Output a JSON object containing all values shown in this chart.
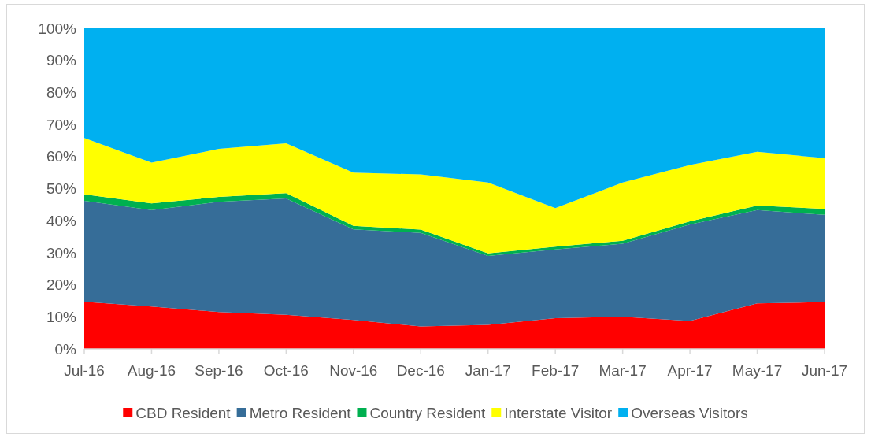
{
  "chart_data": {
    "type": "area",
    "stacked": true,
    "categories": [
      "Jul-16",
      "Aug-16",
      "Sep-16",
      "Oct-16",
      "Nov-16",
      "Dec-16",
      "Jan-17",
      "Feb-17",
      "Mar-17",
      "Apr-17",
      "May-17",
      "Jun-17"
    ],
    "series": [
      {
        "name": "CBD Resident",
        "color": "#ff0000",
        "values": [
          14.7,
          13.2,
          11.5,
          10.6,
          9.0,
          7.0,
          7.5,
          9.6,
          10.0,
          8.7,
          14.2,
          14.6
        ]
      },
      {
        "name": "Metro Resident",
        "color": "#366d98",
        "values": [
          31.5,
          30.1,
          34.4,
          36.3,
          28.3,
          29.2,
          21.5,
          21.4,
          22.8,
          30.1,
          29.1,
          27.2
        ]
      },
      {
        "name": "Country Resident",
        "color": "#00b050",
        "values": [
          2.0,
          2.1,
          1.5,
          1.7,
          1.1,
          1.0,
          0.8,
          0.9,
          0.9,
          1.0,
          1.4,
          1.9
        ]
      },
      {
        "name": "Interstate Visitor",
        "color": "#ffff00",
        "values": [
          17.6,
          12.7,
          15.0,
          15.5,
          16.6,
          17.2,
          22.1,
          12.0,
          18.2,
          17.6,
          16.8,
          15.8
        ]
      },
      {
        "name": "Overseas Visitors",
        "color": "#00b0f0",
        "values": [
          34.2,
          41.9,
          37.6,
          35.9,
          45.0,
          45.6,
          48.1,
          56.1,
          48.1,
          42.6,
          38.5,
          40.5
        ]
      }
    ],
    "ylim": [
      0,
      100
    ],
    "yticks": [
      {
        "value": 0,
        "label": "0%"
      },
      {
        "value": 10,
        "label": "10%"
      },
      {
        "value": 20,
        "label": "20%"
      },
      {
        "value": 30,
        "label": "30%"
      },
      {
        "value": 40,
        "label": "40%"
      },
      {
        "value": 50,
        "label": "50%"
      },
      {
        "value": 60,
        "label": "60%"
      },
      {
        "value": 70,
        "label": "70%"
      },
      {
        "value": 80,
        "label": "80%"
      },
      {
        "value": 90,
        "label": "90%"
      },
      {
        "value": 100,
        "label": "100%"
      }
    ],
    "legend": "bottom"
  }
}
